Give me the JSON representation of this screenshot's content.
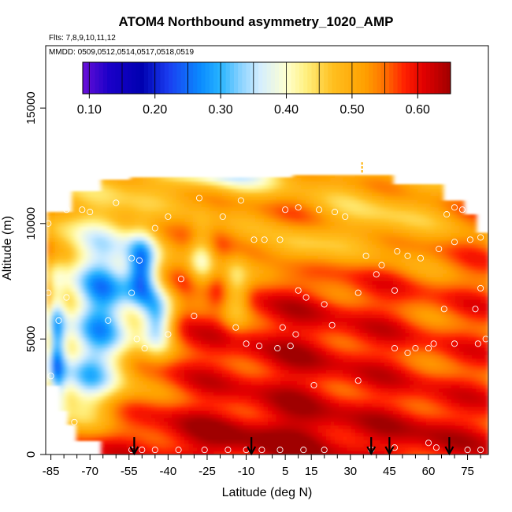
{
  "chart_data": {
    "type": "heatmap",
    "title": "ATOM4 Northbound asymmetry_1020_AMP",
    "subtitle_flights": "Flts: 7,8,9,10,11,12",
    "subtitle_dates": "MMDD: 0509,0512,0514,0517,0518,0519",
    "xlabel": "Latitude (deg N)",
    "ylabel": "Altitude (m)",
    "xlim": [
      -87,
      83
    ],
    "ylim": [
      0,
      17700
    ],
    "x_ticks": [
      -85,
      -70,
      -55,
      -40,
      -25,
      -10,
      5,
      15,
      30,
      45,
      60,
      75
    ],
    "x_tick_labels": [
      "-85",
      "-70",
      "-55",
      "-40",
      "-25",
      "-10",
      "5",
      "15",
      "30",
      "45",
      "60",
      "75"
    ],
    "y_ticks": [
      0,
      5000,
      10000,
      15000
    ],
    "y_tick_labels": [
      "0",
      "5000",
      "10000",
      "15000"
    ],
    "colorbar": {
      "range": [
        0.09,
        0.65
      ],
      "ticks": [
        0.1,
        0.2,
        0.3,
        0.4,
        0.5,
        0.6
      ],
      "tick_labels": [
        "0.10",
        "0.20",
        "0.30",
        "0.40",
        "0.50",
        "0.60"
      ],
      "stops": [
        [
          0.09,
          "#6a0fd8"
        ],
        [
          0.13,
          "#1a00c8"
        ],
        [
          0.18,
          "#0000b0"
        ],
        [
          0.22,
          "#1a3cf0"
        ],
        [
          0.27,
          "#0a8cff"
        ],
        [
          0.3,
          "#28b4ff"
        ],
        [
          0.33,
          "#88d2ff"
        ],
        [
          0.36,
          "#d4eeff"
        ],
        [
          0.4,
          "#ffffd0"
        ],
        [
          0.43,
          "#fff080"
        ],
        [
          0.47,
          "#ffc020"
        ],
        [
          0.52,
          "#ffa000"
        ],
        [
          0.55,
          "#ff7000"
        ],
        [
          0.58,
          "#ff2000"
        ],
        [
          0.61,
          "#e00000"
        ],
        [
          0.65,
          "#a00000"
        ]
      ]
    },
    "sample_points": [
      {
        "lat": -86,
        "alt": 10000
      },
      {
        "lat": -83,
        "alt": 10700
      },
      {
        "lat": -79,
        "alt": 10600
      },
      {
        "lat": -73,
        "alt": 10600
      },
      {
        "lat": -70,
        "alt": 10500
      },
      {
        "lat": -60,
        "alt": 10900
      },
      {
        "lat": -45,
        "alt": 9800
      },
      {
        "lat": -40,
        "alt": 10300
      },
      {
        "lat": -28,
        "alt": 11100
      },
      {
        "lat": -19,
        "alt": 10300
      },
      {
        "lat": -12,
        "alt": 11000
      },
      {
        "lat": 5,
        "alt": 10600
      },
      {
        "lat": 10,
        "alt": 10700
      },
      {
        "lat": 18,
        "alt": 10600
      },
      {
        "lat": 24,
        "alt": 10500
      },
      {
        "lat": 28,
        "alt": 10300
      },
      {
        "lat": 67,
        "alt": 10400
      },
      {
        "lat": 70,
        "alt": 10700
      },
      {
        "lat": 73,
        "alt": 10600
      },
      {
        "lat": -54,
        "alt": 8500
      },
      {
        "lat": -51,
        "alt": 8400
      },
      {
        "lat": -7,
        "alt": 9300
      },
      {
        "lat": -3,
        "alt": 9300
      },
      {
        "lat": 3,
        "alt": 9300
      },
      {
        "lat": 36,
        "alt": 8600
      },
      {
        "lat": 42,
        "alt": 8200
      },
      {
        "lat": 48,
        "alt": 8800
      },
      {
        "lat": 52,
        "alt": 8600
      },
      {
        "lat": 57,
        "alt": 8500
      },
      {
        "lat": 64,
        "alt": 8900
      },
      {
        "lat": 70,
        "alt": 9200
      },
      {
        "lat": 76,
        "alt": 9300
      },
      {
        "lat": 80,
        "alt": 9400
      },
      {
        "lat": -86,
        "alt": 7000
      },
      {
        "lat": -79,
        "alt": 6800
      },
      {
        "lat": -54,
        "alt": 7000
      },
      {
        "lat": -35,
        "alt": 7600
      },
      {
        "lat": -30,
        "alt": 6000
      },
      {
        "lat": 10,
        "alt": 7100
      },
      {
        "lat": 13,
        "alt": 6800
      },
      {
        "lat": 20,
        "alt": 6500
      },
      {
        "lat": 33,
        "alt": 7000
      },
      {
        "lat": 40,
        "alt": 7800
      },
      {
        "lat": 47,
        "alt": 7100
      },
      {
        "lat": 66,
        "alt": 6300
      },
      {
        "lat": 78,
        "alt": 6300
      },
      {
        "lat": 80,
        "alt": 7200
      },
      {
        "lat": -82,
        "alt": 5800
      },
      {
        "lat": -63,
        "alt": 5800
      },
      {
        "lat": -52,
        "alt": 5000
      },
      {
        "lat": -49,
        "alt": 4600
      },
      {
        "lat": -40,
        "alt": 5200
      },
      {
        "lat": -14,
        "alt": 5500
      },
      {
        "lat": -10,
        "alt": 4800
      },
      {
        "lat": -5,
        "alt": 4700
      },
      {
        "lat": 2,
        "alt": 4600
      },
      {
        "lat": 4,
        "alt": 5500
      },
      {
        "lat": 7,
        "alt": 4700
      },
      {
        "lat": 9,
        "alt": 5200
      },
      {
        "lat": 23,
        "alt": 5600
      },
      {
        "lat": 47,
        "alt": 4600
      },
      {
        "lat": 52,
        "alt": 4400
      },
      {
        "lat": 55,
        "alt": 4600
      },
      {
        "lat": 60,
        "alt": 4600
      },
      {
        "lat": 62,
        "alt": 4800
      },
      {
        "lat": 70,
        "alt": 4800
      },
      {
        "lat": 79,
        "alt": 4800
      },
      {
        "lat": 82,
        "alt": 5000
      },
      {
        "lat": 16,
        "alt": 3000
      },
      {
        "lat": 33,
        "alt": 3200
      },
      {
        "lat": -85,
        "alt": 3400
      },
      {
        "lat": -76,
        "alt": 1400
      },
      {
        "lat": -54,
        "alt": 200
      },
      {
        "lat": -50,
        "alt": 200
      },
      {
        "lat": -45,
        "alt": 200
      },
      {
        "lat": -36,
        "alt": 200
      },
      {
        "lat": -26,
        "alt": 200
      },
      {
        "lat": -17,
        "alt": 200
      },
      {
        "lat": -10,
        "alt": 200
      },
      {
        "lat": -4,
        "alt": 200
      },
      {
        "lat": 3,
        "alt": 200
      },
      {
        "lat": 12,
        "alt": 200
      },
      {
        "lat": 20,
        "alt": 200
      },
      {
        "lat": 38,
        "alt": 200
      },
      {
        "lat": 47,
        "alt": 300
      },
      {
        "lat": 60,
        "alt": 500
      },
      {
        "lat": 63,
        "alt": 300
      },
      {
        "lat": 75,
        "alt": 200
      },
      {
        "lat": 80,
        "alt": 200
      }
    ],
    "profile_markers_lat": [
      -53,
      -8,
      38,
      45,
      68
    ]
  }
}
